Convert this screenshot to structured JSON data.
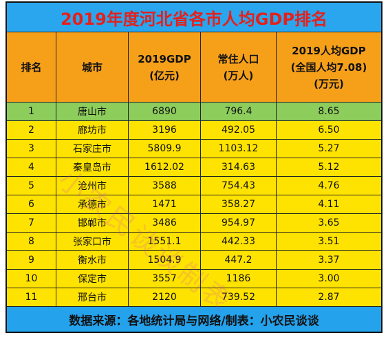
{
  "title": "2019年度河北省各市人均GDP排名",
  "table": {
    "header": [
      [
        "排名"
      ],
      [
        "城市"
      ],
      [
        "2019GDP",
        "(亿元)"
      ],
      [
        "常住人口",
        "(万人)"
      ],
      [
        "2019人均GDP",
        "(全国人均7.08)",
        "(万元)"
      ]
    ],
    "rows": [
      [
        "1",
        "唐山市",
        "6890",
        "796.4",
        "8.65"
      ],
      [
        "2",
        "廊坊市",
        "3196",
        "492.05",
        "6.50"
      ],
      [
        "3",
        "石家庄市",
        "5809.9",
        "1103.12",
        "5.27"
      ],
      [
        "4",
        "秦皇岛市",
        "1612.02",
        "314.63",
        "5.12"
      ],
      [
        "5",
        "沧州市",
        "3588",
        "754.43",
        "4.76"
      ],
      [
        "6",
        "承德市",
        "1471",
        "358.27",
        "4.11"
      ],
      [
        "7",
        "邯郸市",
        "3486",
        "954.97",
        "3.65"
      ],
      [
        "8",
        "张家口市",
        "1551.1",
        "442.33",
        "3.51"
      ],
      [
        "9",
        "衡水市",
        "1504.9",
        "447.2",
        "3.37"
      ],
      [
        "10",
        "保定市",
        "3557",
        "1186",
        "3.00"
      ],
      [
        "11",
        "邢台市",
        "2120",
        "739.52",
        "2.87"
      ]
    ]
  },
  "footer": "数据来源：各地统计局与网络/制表：小农民谈谈",
  "watermark": "小农民谈谈制表"
}
